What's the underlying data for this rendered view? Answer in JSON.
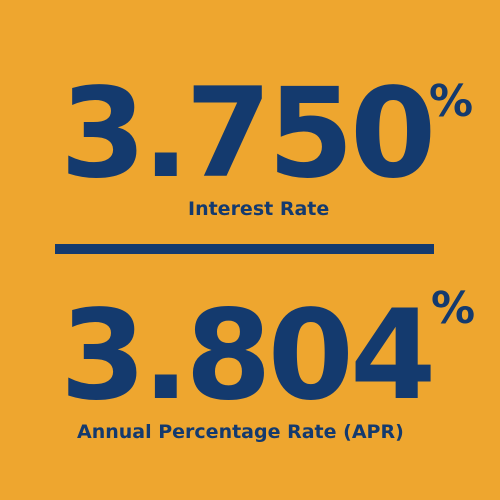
{
  "background_color": "#EEA62F",
  "text_color": "#143A6E",
  "interest_rate": {
    "value": "3.750",
    "unit": "%",
    "label": "Interest Rate"
  },
  "apr": {
    "value": "3.804",
    "unit": "%",
    "label": "Annual Percentage Rate (APR)"
  }
}
